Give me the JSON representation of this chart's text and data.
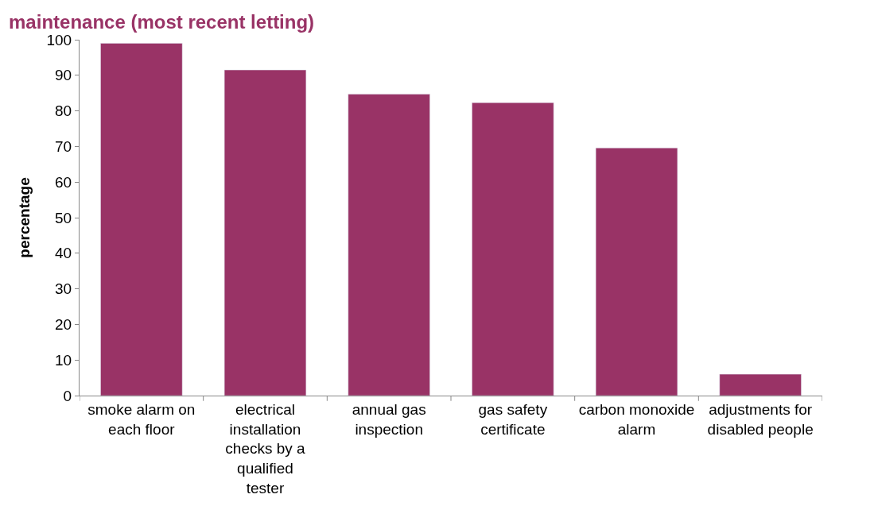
{
  "chart_data": {
    "type": "bar",
    "title": "maintenance (most recent letting)",
    "ylabel": "percentage",
    "categories": [
      "smoke alarm on each floor",
      "electrical installation checks by a qualified tester",
      "annual gas inspection",
      "gas safety certificate",
      "carbon monoxide alarm",
      "adjustments for disabled people"
    ],
    "values": [
      99,
      91.5,
      84.7,
      82.3,
      69.6,
      6
    ],
    "color": "#993366",
    "ylim": [
      0,
      100
    ],
    "yticks": [
      0,
      10,
      20,
      30,
      40,
      50,
      60,
      70,
      80,
      90,
      100
    ]
  }
}
